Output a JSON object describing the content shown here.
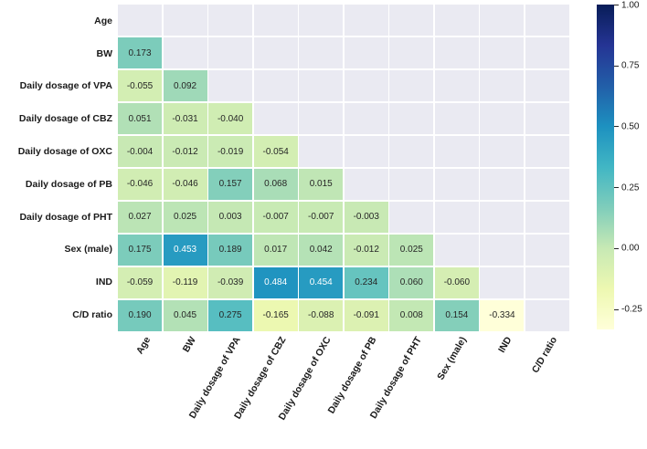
{
  "chart_data": {
    "type": "heatmap",
    "title": "",
    "labels": [
      "Age",
      "BW",
      "Daily dosage of VPA",
      "Daily dosage of CBZ",
      "Daily dosage of OXC",
      "Daily dosage of PB",
      "Daily dosage of PHT",
      "Sex (male)",
      "IND",
      "C/D ratio"
    ],
    "matrix": [
      [
        null,
        null,
        null,
        null,
        null,
        null,
        null,
        null,
        null,
        null
      ],
      [
        0.173,
        null,
        null,
        null,
        null,
        null,
        null,
        null,
        null,
        null
      ],
      [
        -0.055,
        0.092,
        null,
        null,
        null,
        null,
        null,
        null,
        null,
        null
      ],
      [
        0.051,
        -0.031,
        -0.04,
        null,
        null,
        null,
        null,
        null,
        null,
        null
      ],
      [
        -0.004,
        -0.012,
        -0.019,
        -0.054,
        null,
        null,
        null,
        null,
        null,
        null
      ],
      [
        -0.046,
        -0.046,
        0.157,
        0.068,
        0.015,
        null,
        null,
        null,
        null,
        null
      ],
      [
        0.027,
        0.025,
        0.003,
        -0.007,
        -0.007,
        -0.003,
        null,
        null,
        null,
        null
      ],
      [
        0.175,
        0.453,
        0.189,
        0.017,
        0.042,
        -0.012,
        0.025,
        null,
        null,
        null
      ],
      [
        -0.059,
        -0.119,
        -0.039,
        0.484,
        0.454,
        0.234,
        0.06,
        -0.06,
        null,
        null
      ],
      [
        0.19,
        0.045,
        0.275,
        -0.165,
        -0.088,
        -0.091,
        0.008,
        0.154,
        -0.334,
        null
      ]
    ],
    "mask": "upper-triangle-including-diagonal",
    "value_format_decimals": 3,
    "color_scale": {
      "colormap": "YlGnBu",
      "vmin": -0.334,
      "vmax": 1.0,
      "ticks": [
        1.0,
        0.75,
        0.5,
        0.25,
        0.0,
        -0.25
      ],
      "tick_labels": [
        "1.00",
        "0.75",
        "0.50",
        "0.25",
        "0.00",
        "-0.25"
      ]
    },
    "layout": {
      "legend_position": "right-colorbar",
      "grid": "white-cell-separators",
      "x_tick_rotation_deg": 60
    },
    "colors": {
      "figure_background": "#ffffff",
      "masked_cell": "#eaeaf2",
      "grid_line": "#ffffff",
      "annotation_dark": "#262626",
      "annotation_light": "#ffffff",
      "axis_label": "#1a1a1a"
    }
  }
}
